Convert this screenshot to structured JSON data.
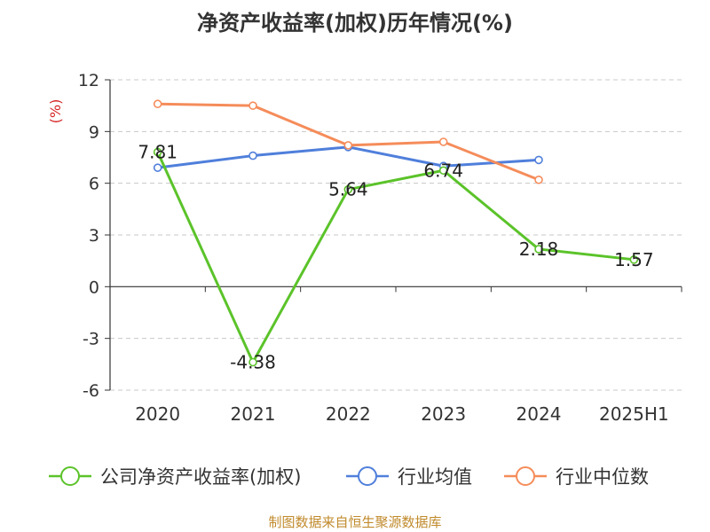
{
  "title": "净资产收益率(加权)历年情况(%)",
  "footer": "制图数据来自恒生聚源数据库",
  "chart_data": {
    "type": "line",
    "title": "净资产收益率(加权)历年情况(%)",
    "ylabel": "(%)",
    "categories": [
      "2020",
      "2021",
      "2022",
      "2023",
      "2024",
      "2025H1"
    ],
    "ylim": [
      -6,
      12
    ],
    "yticks": [
      -6,
      -3,
      0,
      3,
      6,
      9,
      12
    ],
    "grid": true,
    "legend_position": "bottom",
    "series": [
      {
        "name": "公司净资产收益率(加权)",
        "color": "#5bc32a",
        "values": [
          7.81,
          -4.38,
          5.64,
          6.74,
          2.18,
          1.57
        ],
        "labels": [
          "7.81",
          "-4.38",
          "5.64",
          "6.74",
          "2.18",
          "1.57"
        ]
      },
      {
        "name": "行业均值",
        "color": "#4f7fdb",
        "values": [
          6.9,
          7.6,
          8.1,
          7.0,
          7.35,
          null
        ]
      },
      {
        "name": "行业中位数",
        "color": "#f58c5a",
        "values": [
          10.6,
          10.5,
          8.2,
          8.4,
          6.2,
          null
        ]
      }
    ]
  }
}
